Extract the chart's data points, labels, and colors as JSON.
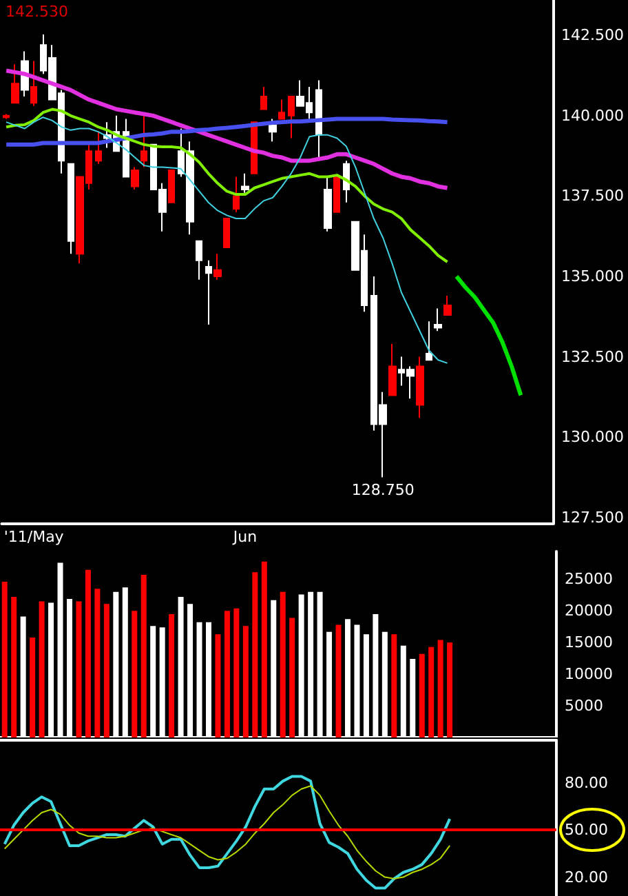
{
  "chart_data": [
    {
      "type": "candlestick",
      "categories": [
        null,
        null,
        null,
        "'11/May",
        null,
        null,
        null,
        null,
        null,
        null,
        null,
        null,
        null,
        null,
        null,
        null,
        null,
        null,
        null,
        null,
        null,
        null,
        null,
        null,
        null,
        null,
        "Jun",
        null,
        null,
        null,
        null,
        null,
        null,
        null,
        null,
        null,
        null,
        null,
        null,
        null,
        null,
        null,
        null,
        null,
        null,
        null,
        null,
        null,
        null,
        null,
        null,
        null,
        null,
        null,
        null,
        null,
        null,
        null,
        null,
        null
      ],
      "series": [
        {
          "type": "candlestick",
          "ohlc": [
            [
              140.0,
              140.05,
              139.9,
              139.95
            ],
            [
              141.0,
              141.6,
              140.4,
              140.4
            ],
            [
              140.8,
              142.0,
              140.6,
              141.7
            ],
            [
              140.9,
              141.7,
              140.3,
              140.4
            ],
            [
              141.4,
              142.53,
              141.3,
              142.2
            ],
            [
              140.5,
              142.2,
              140.5,
              141.8
            ],
            [
              138.6,
              140.8,
              138.2,
              140.7
            ],
            [
              136.1,
              138.5,
              135.7,
              138.5
            ],
            [
              138.1,
              138.1,
              135.4,
              135.7
            ],
            [
              138.9,
              139.1,
              137.7,
              137.9
            ],
            [
              138.9,
              139.5,
              138.5,
              138.6
            ],
            [
              139.3,
              139.8,
              139.0,
              139.4
            ],
            [
              138.9,
              140.0,
              138.9,
              139.5
            ],
            [
              138.1,
              139.9,
              138.1,
              139.5
            ],
            [
              138.3,
              138.4,
              137.7,
              137.8
            ],
            [
              138.9,
              140.0,
              138.4,
              138.6
            ],
            [
              137.7,
              139.1,
              137.7,
              139.1
            ],
            [
              137.0,
              137.9,
              136.4,
              137.7
            ],
            [
              138.3,
              138.3,
              137.3,
              137.3
            ],
            [
              138.2,
              139.6,
              138.1,
              138.9
            ],
            [
              136.7,
              139.2,
              136.3,
              138.9
            ],
            [
              135.5,
              136.1,
              134.9,
              136.1
            ],
            [
              135.1,
              135.5,
              133.5,
              135.3
            ],
            [
              135.2,
              135.7,
              134.9,
              135.0
            ],
            [
              136.8,
              136.8,
              135.9,
              135.9
            ],
            [
              137.5,
              138.1,
              137.0,
              137.1
            ],
            [
              137.7,
              138.2,
              137.6,
              137.8
            ],
            [
              139.8,
              139.8,
              138.2,
              138.2
            ],
            [
              140.6,
              140.9,
              140.2,
              140.2
            ],
            [
              139.5,
              139.9,
              139.2,
              139.7
            ],
            [
              140.1,
              140.5,
              139.9,
              139.9
            ],
            [
              140.6,
              140.6,
              139.3,
              140.0
            ],
            [
              140.3,
              141.1,
              140.3,
              140.6
            ],
            [
              140.1,
              140.9,
              139.9,
              140.4
            ],
            [
              139.4,
              141.1,
              138.6,
              140.8
            ],
            [
              136.5,
              138.1,
              136.4,
              137.7
            ],
            [
              138.1,
              138.1,
              137.0,
              137.0
            ],
            [
              137.7,
              138.6,
              137.3,
              138.5
            ],
            [
              135.2,
              136.7,
              135.2,
              136.7
            ],
            [
              134.1,
              136.3,
              133.9,
              135.8
            ],
            [
              130.4,
              135.0,
              130.2,
              134.4
            ],
            [
              130.4,
              131.4,
              128.75,
              131.0
            ],
            [
              132.2,
              132.9,
              131.3,
              131.3
            ],
            [
              132.0,
              132.5,
              131.6,
              132.1
            ],
            [
              131.9,
              132.2,
              131.2,
              132.1
            ],
            [
              132.2,
              132.5,
              130.6,
              131.0
            ],
            [
              132.4,
              133.6,
              132.4,
              132.6
            ],
            [
              133.4,
              134.0,
              133.3,
              133.5
            ],
            [
              134.1,
              134.4,
              133.8,
              133.8
            ],
            null,
            null,
            null,
            null,
            null,
            null,
            null,
            null,
            null,
            null,
            null
          ],
          "colors": [
            "#ff0000",
            "#ff0000",
            "#ffffff",
            "#ff0000",
            "#ffffff",
            "#ffffff",
            "#ffffff",
            "#ffffff",
            "#ff0000",
            "#ff0000",
            "#ff0000",
            "#ffffff",
            "#ffffff",
            "#ffffff",
            "#ff0000",
            "#ff0000",
            "#ffffff",
            "#ffffff",
            "#ff0000",
            "#ffffff",
            "#ffffff",
            "#ffffff",
            "#ffffff",
            "#ff0000",
            "#ff0000",
            "#ff0000",
            "#ffffff",
            "#ff0000",
            "#ff0000",
            "#ffffff",
            "#ff0000",
            "#ff0000",
            "#ffffff",
            "#ffffff",
            "#ffffff",
            "#ffffff",
            "#ff0000",
            "#ffffff",
            "#ffffff",
            "#ffffff",
            "#ffffff",
            "#ffffff",
            "#ff0000",
            "#ffffff",
            "#ffffff",
            "#ff0000",
            "#ffffff",
            "#ffffff",
            "#ff0000",
            null,
            null,
            null,
            null,
            null,
            null,
            null,
            null,
            null,
            null,
            null
          ]
        },
        {
          "type": "line",
          "color": "#e030e0",
          "values": [
            141.4,
            141.35,
            141.3,
            141.2,
            141.1,
            141.0,
            140.9,
            140.8,
            140.65,
            140.5,
            140.4,
            140.3,
            140.2,
            140.15,
            140.1,
            140.05,
            140.0,
            139.9,
            139.8,
            139.7,
            139.6,
            139.5,
            139.4,
            139.3,
            139.2,
            139.1,
            139.0,
            138.9,
            138.85,
            138.75,
            138.7,
            138.6,
            138.6,
            138.6,
            138.65,
            138.7,
            138.8,
            138.8,
            138.7,
            138.6,
            138.5,
            138.35,
            138.2,
            138.1,
            138.05,
            137.95,
            137.9,
            137.8,
            137.75,
            null,
            null,
            null,
            null,
            null,
            null,
            null,
            null,
            null,
            null,
            null
          ]
        },
        {
          "type": "line",
          "color": "#4850f0",
          "values": [
            139.1,
            139.1,
            139.1,
            139.1,
            139.15,
            139.15,
            139.15,
            139.15,
            139.15,
            139.15,
            139.15,
            139.2,
            139.25,
            139.3,
            139.35,
            139.4,
            139.42,
            139.45,
            139.5,
            139.5,
            139.52,
            139.55,
            139.57,
            139.6,
            139.62,
            139.65,
            139.68,
            139.72,
            139.75,
            139.78,
            139.8,
            139.82,
            139.82,
            139.84,
            139.86,
            139.88,
            139.9,
            139.9,
            139.9,
            139.9,
            139.9,
            139.9,
            139.88,
            139.87,
            139.86,
            139.85,
            139.83,
            139.82,
            139.8,
            null,
            null,
            null,
            null,
            null,
            null,
            null,
            null,
            null,
            null,
            null
          ]
        },
        {
          "type": "line",
          "color": "#80f000",
          "values": [
            139.65,
            139.7,
            139.72,
            139.85,
            140.1,
            140.2,
            140.15,
            140.0,
            139.9,
            139.8,
            139.65,
            139.55,
            139.4,
            139.3,
            139.2,
            139.1,
            139.05,
            139.03,
            139.03,
            139.0,
            138.8,
            138.55,
            138.2,
            137.9,
            137.65,
            137.55,
            137.55,
            137.75,
            137.85,
            137.95,
            138.05,
            138.1,
            138.15,
            138.2,
            138.1,
            138.1,
            138.15,
            138.0,
            137.8,
            137.5,
            137.25,
            137.1,
            137.0,
            136.8,
            136.45,
            136.2,
            135.95,
            135.65,
            135.45,
            null,
            null,
            null,
            null,
            null,
            null,
            null,
            null,
            null,
            null,
            null
          ]
        },
        {
          "type": "line",
          "color": "#40d0e0",
          "values": [
            139.8,
            139.7,
            139.6,
            139.8,
            139.95,
            139.85,
            139.65,
            139.55,
            139.6,
            139.6,
            139.5,
            139.35,
            139.15,
            138.95,
            138.7,
            138.45,
            138.4,
            138.4,
            138.38,
            138.35,
            138.0,
            137.65,
            137.3,
            137.05,
            136.9,
            136.8,
            136.8,
            137.1,
            137.35,
            137.45,
            137.8,
            138.2,
            138.7,
            139.35,
            139.4,
            139.4,
            139.3,
            139.05,
            138.4,
            137.6,
            136.8,
            136.2,
            135.4,
            134.5,
            133.9,
            133.3,
            132.7,
            132.4,
            132.3,
            null,
            null,
            null,
            null,
            null,
            null,
            null,
            null,
            null,
            null,
            null
          ]
        },
        {
          "type": "line",
          "color": "#00e000",
          "values": [
            null,
            null,
            null,
            null,
            null,
            null,
            null,
            null,
            null,
            null,
            null,
            null,
            null,
            null,
            null,
            null,
            null,
            null,
            null,
            null,
            null,
            null,
            null,
            null,
            null,
            null,
            null,
            null,
            null,
            null,
            null,
            null,
            null,
            null,
            null,
            null,
            null,
            null,
            null,
            null,
            null,
            null,
            null,
            null,
            null,
            null,
            null,
            null,
            null,
            135.0,
            134.65,
            134.35,
            133.95,
            133.55,
            132.95,
            132.2,
            131.3,
            null,
            null,
            null
          ]
        }
      ],
      "ylim": [
        127.3,
        143.6
      ],
      "yticks": [
        {
          "value": 127.5,
          "label": "127.500"
        },
        {
          "value": 130,
          "label": "130.000"
        },
        {
          "value": 132.5,
          "label": "132.500"
        },
        {
          "value": 135,
          "label": "135.000"
        },
        {
          "value": 137.5,
          "label": "137.500"
        },
        {
          "value": 140,
          "label": "140.000"
        },
        {
          "value": 142.5,
          "label": "142.500"
        }
      ],
      "annotations": [
        "142.530",
        {
          "text": "128.750",
          "y": 128.75
        }
      ],
      "marker": "none",
      "grid": false
    },
    {
      "type": "bar",
      "categories": [
        null,
        null,
        null,
        null,
        null,
        null,
        null,
        null,
        null,
        null,
        null,
        null,
        null,
        null,
        null,
        null,
        null,
        null,
        null,
        null,
        null,
        null,
        null,
        null,
        null,
        null,
        null,
        null,
        null,
        null,
        null,
        null,
        null,
        null,
        null,
        null,
        null,
        null,
        null,
        null,
        null,
        null,
        null,
        null,
        null,
        null,
        null,
        null,
        null,
        null,
        null,
        null,
        null,
        null,
        null,
        null,
        null,
        null,
        null,
        null
      ],
      "values": [
        24600,
        22200,
        19100,
        15800,
        21500,
        21300,
        27600,
        21900,
        21500,
        26500,
        23500,
        21100,
        23000,
        23700,
        20000,
        25700,
        17600,
        17400,
        19500,
        22200,
        21100,
        18200,
        18200,
        16300,
        20000,
        20400,
        17600,
        26100,
        27800,
        21700,
        23000,
        18900,
        22600,
        23000,
        23000,
        16700,
        17800,
        18700,
        17800,
        16300,
        19500,
        16700,
        16300,
        14500,
        12400,
        13200,
        14300,
        15400,
        15000,
        null,
        null,
        null,
        null,
        null,
        null,
        null,
        null,
        null,
        null,
        null
      ],
      "colors": [
        "#ff0000",
        "#ff0000",
        "#ffffff",
        "#ff0000",
        "#ff0000",
        "#ffffff",
        "#ffffff",
        "#ffffff",
        "#ff0000",
        "#ff0000",
        "#ff0000",
        "#ff0000",
        "#ffffff",
        "#ffffff",
        "#ff0000",
        "#ff0000",
        "#ffffff",
        "#ffffff",
        "#ff0000",
        "#ffffff",
        "#ffffff",
        "#ffffff",
        "#ffffff",
        "#ff0000",
        "#ff0000",
        "#ff0000",
        "#ff0000",
        "#ff0000",
        "#ff0000",
        "#ffffff",
        "#ff0000",
        "#ff0000",
        "#ffffff",
        "#ffffff",
        "#ffffff",
        "#ffffff",
        "#ff0000",
        "#ffffff",
        "#ffffff",
        "#ffffff",
        "#ffffff",
        "#ffffff",
        "#ff0000",
        "#ffffff",
        "#ffffff",
        "#ff0000",
        "#ff0000",
        "#ff0000",
        "#ff0000",
        null,
        null,
        null,
        null,
        null,
        null,
        null,
        null,
        null,
        null,
        null
      ],
      "ylim": [
        0,
        29400
      ],
      "yticks": [
        5000,
        10000,
        15000,
        20000,
        25000
      ],
      "tick_labels": "y",
      "grid": false
    },
    {
      "type": "line",
      "categories": [
        null,
        null,
        null,
        null,
        null,
        null,
        null,
        null,
        null,
        null,
        null,
        null,
        null,
        null,
        null,
        null,
        null,
        null,
        null,
        null,
        null,
        null,
        null,
        null,
        null,
        null,
        null,
        null,
        null,
        null,
        null,
        null,
        null,
        null,
        null,
        null,
        null,
        null,
        null,
        null,
        null,
        null,
        null,
        null,
        null,
        null,
        null,
        null,
        null,
        null,
        null,
        null,
        null,
        null,
        null,
        null,
        null,
        null,
        null,
        null
      ],
      "series": [
        {
          "color": "#40d8e0",
          "values": [
            41,
            53,
            61,
            67,
            71,
            68,
            54,
            40,
            40,
            43,
            45,
            47,
            47,
            46,
            51,
            56,
            52,
            41,
            44,
            44,
            34,
            26,
            26,
            27,
            35,
            43,
            52,
            65,
            76,
            76,
            81,
            84,
            84,
            81,
            54,
            42,
            39,
            35,
            25,
            18,
            13,
            13,
            19,
            23,
            25,
            28,
            35,
            44,
            57,
            null,
            null,
            null,
            null,
            null,
            null,
            null,
            null,
            null,
            null,
            null
          ]
        },
        {
          "color": "#b8d800",
          "values": [
            38,
            44,
            50,
            56,
            61,
            63,
            60,
            53,
            48,
            46,
            46,
            45,
            45,
            46,
            48,
            50,
            51,
            49,
            47,
            45,
            41,
            37,
            33,
            31,
            32,
            36,
            41,
            48,
            54,
            61,
            66,
            72,
            76,
            78,
            72,
            62,
            53,
            46,
            37,
            30,
            24,
            20,
            19,
            20,
            23,
            25,
            28,
            32,
            40,
            null,
            null,
            null,
            null,
            null,
            null,
            null,
            null,
            null,
            null,
            null
          ]
        }
      ],
      "ylim": [
        8,
        107
      ],
      "yticks": [
        {
          "value": 20,
          "label": "20.00"
        },
        {
          "value": 50,
          "label": "50.00"
        },
        {
          "value": 80,
          "label": "80.00"
        }
      ],
      "ref_lines": [
        {
          "axis": "y",
          "value": 50,
          "color": "#ff0000"
        }
      ],
      "tick_labels": "y",
      "marker": "none",
      "grid": false
    }
  ]
}
